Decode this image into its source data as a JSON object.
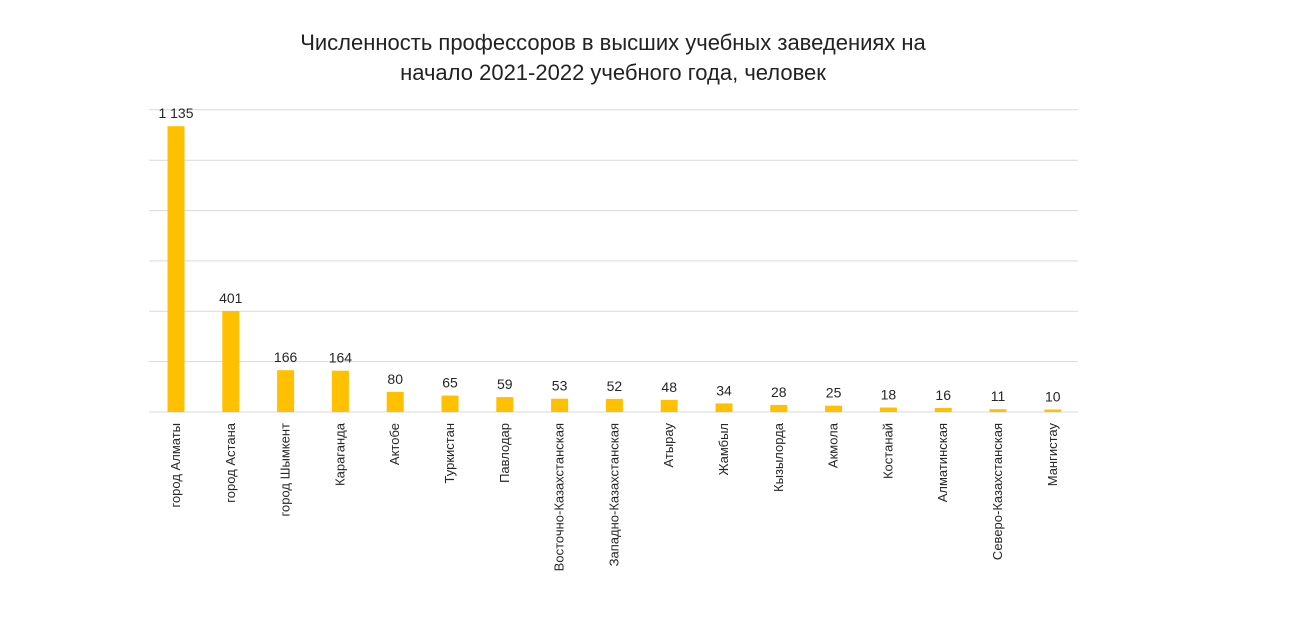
{
  "chart_data": {
    "type": "bar",
    "title_lines": [
      "Численность профессоров в высших учебных заведениях на",
      "начало 2021-2022 учебного года, человек"
    ],
    "categories": [
      "город Алматы",
      "город Астана",
      "город Шымкент",
      "Караганда",
      "Актобе",
      "Туркистан",
      "Павлодар",
      "Восточно-Казахстанская",
      "Западно-Казахстанская",
      "Атырау",
      "Жамбыл",
      "Кызылорда",
      "Акмола",
      "Костанай",
      "Алматинская",
      "Северо-Казахстанская",
      "Мангистау"
    ],
    "values": [
      1135,
      401,
      166,
      164,
      80,
      65,
      59,
      53,
      52,
      48,
      34,
      28,
      25,
      18,
      16,
      11,
      10
    ],
    "data_labels": [
      "1 135",
      "401",
      "166",
      "164",
      "80",
      "65",
      "59",
      "53",
      "52",
      "48",
      "34",
      "28",
      "25",
      "18",
      "16",
      "11",
      "10"
    ],
    "ylim": [
      0,
      1200
    ],
    "grid_step": 200,
    "grid": true,
    "y_axis_labels_shown": false,
    "bar_color": "#FFC000",
    "grid_color": "#D9D9D9"
  }
}
